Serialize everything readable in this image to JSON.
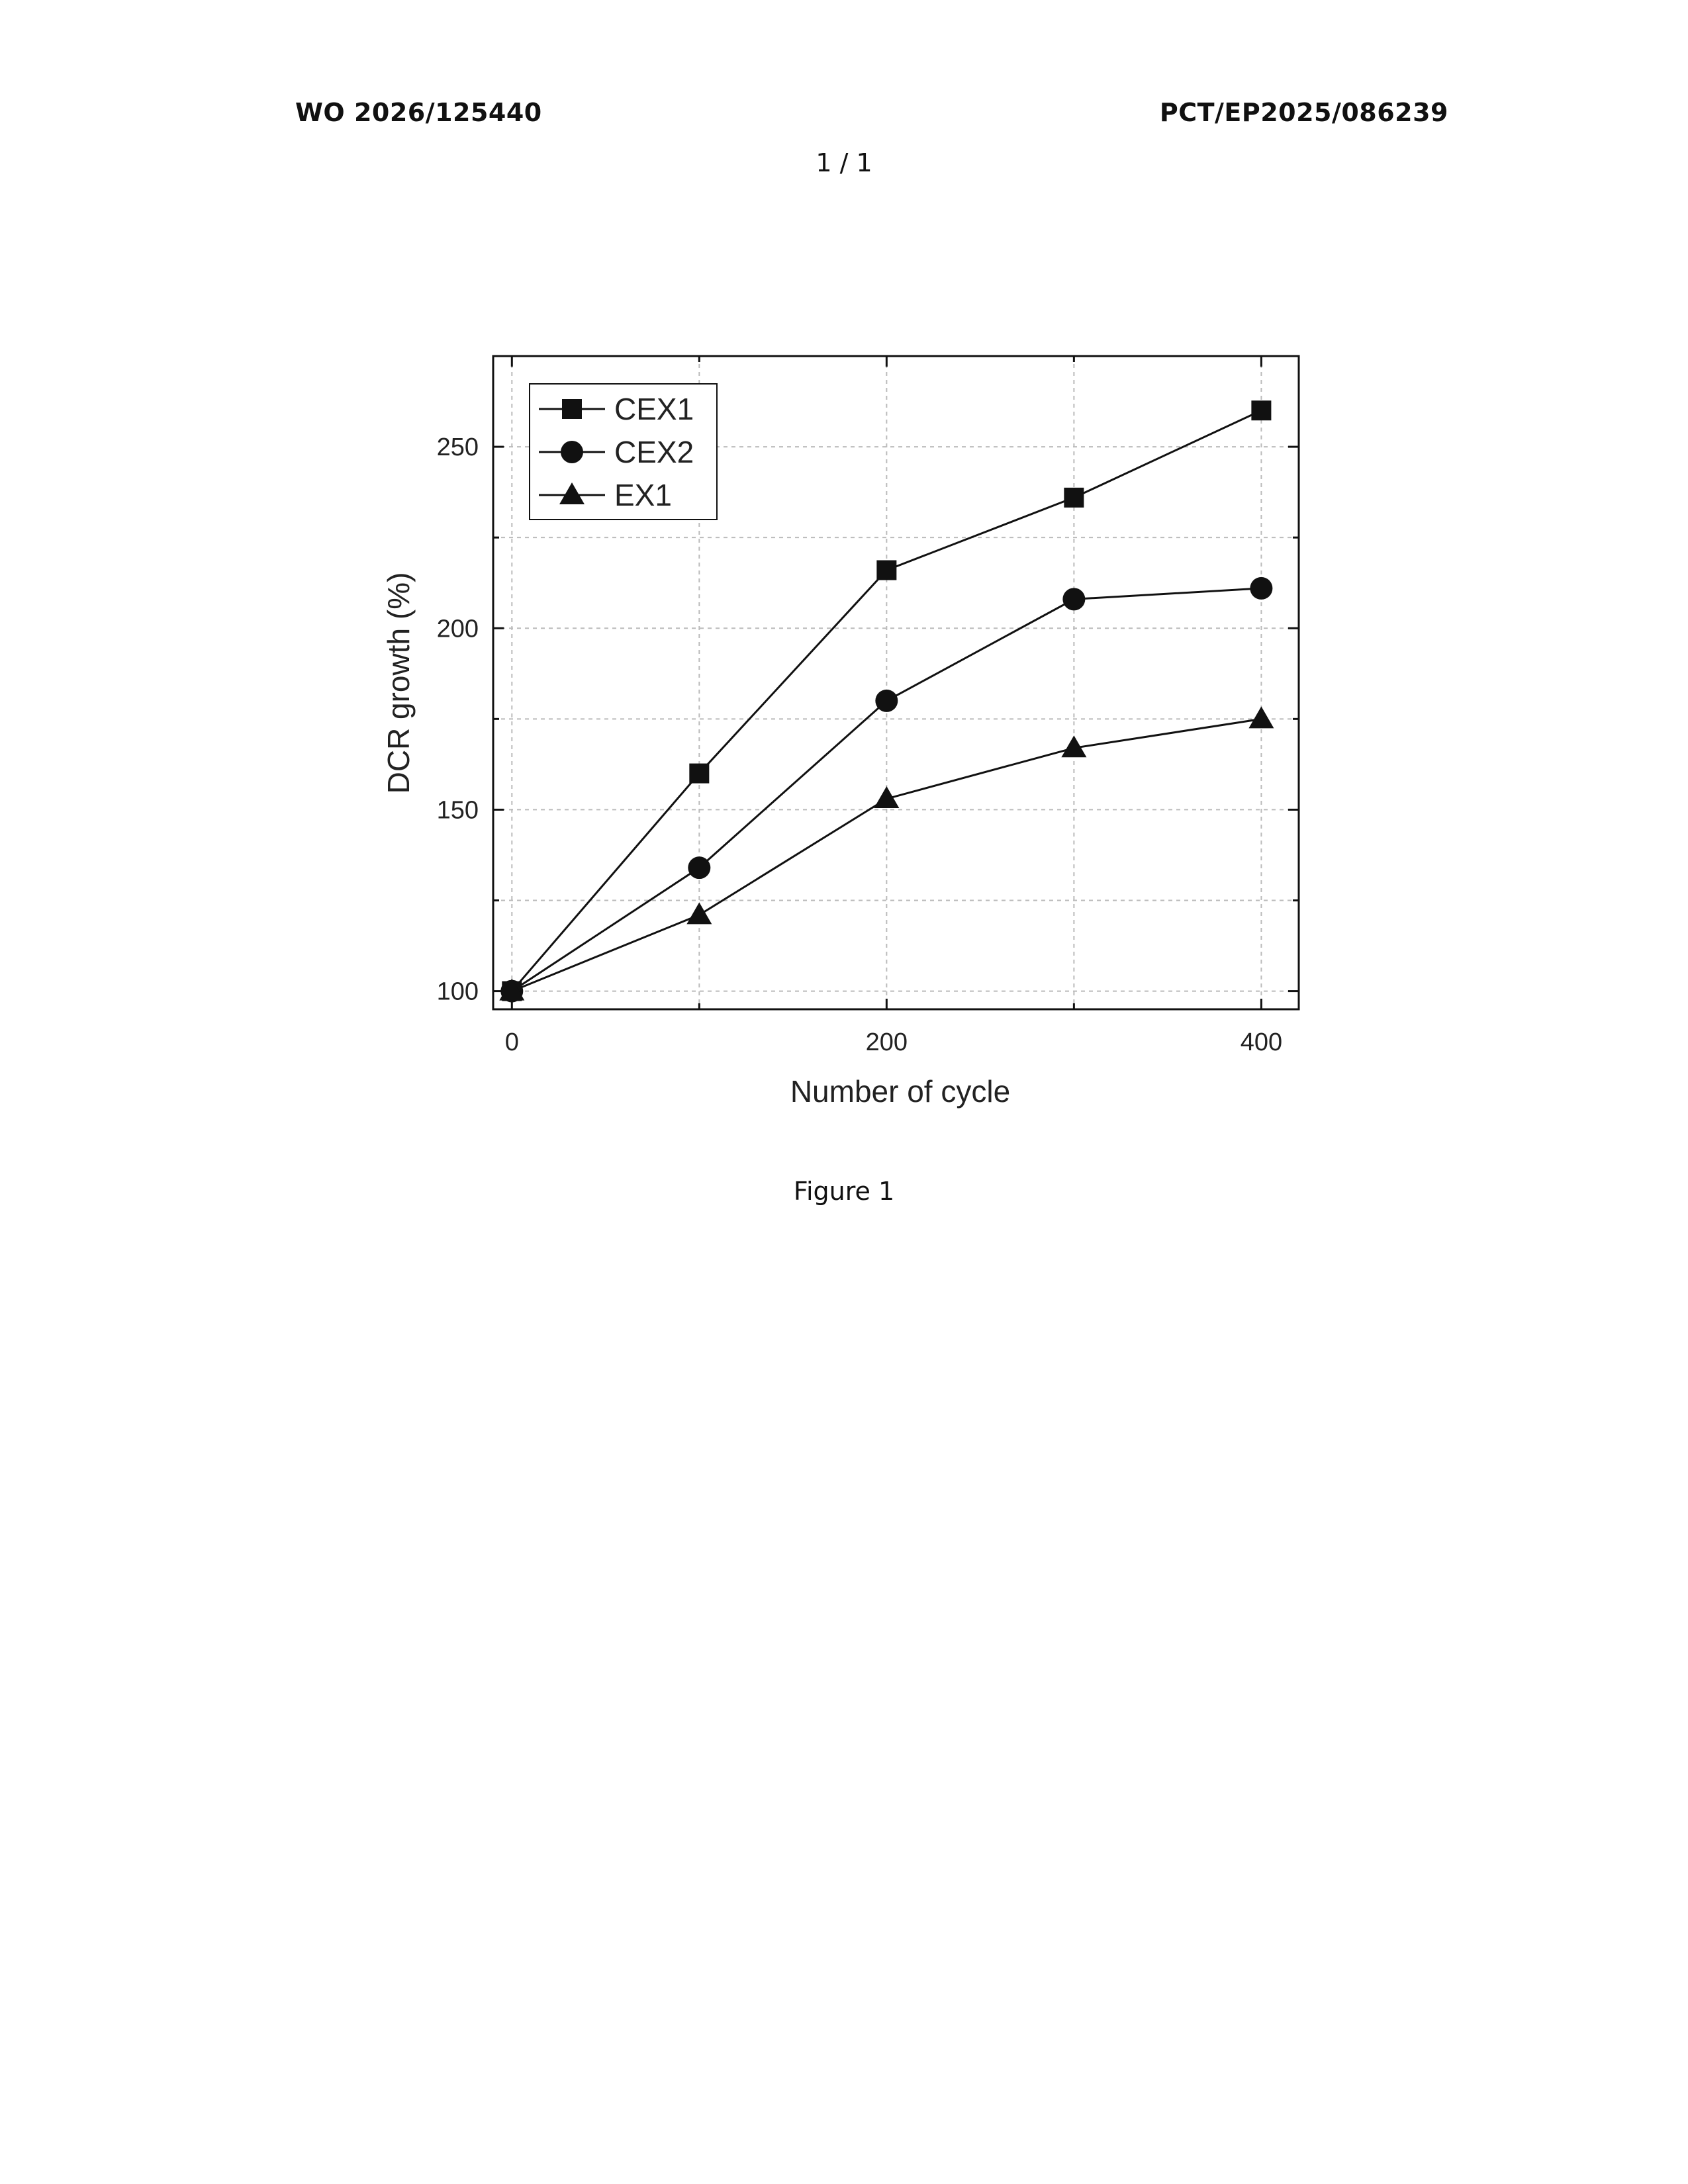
{
  "page": {
    "header_left": "WO 2026/125440",
    "header_right": "PCT/EP2025/086239",
    "page_number": "1 / 1",
    "caption": "Figure 1"
  },
  "chart_data": {
    "type": "line",
    "title": "",
    "xlabel": "Number of cycle",
    "ylabel": "DCR growth (%)",
    "xlim": [
      -10,
      420
    ],
    "ylim": [
      95,
      275
    ],
    "x_ticks": [
      0,
      200,
      400
    ],
    "y_ticks": [
      100,
      150,
      200,
      250
    ],
    "x_minor_grid": [
      100,
      300
    ],
    "y_minor_grid": [
      125,
      175,
      225
    ],
    "grid": true,
    "legend_position": "top-left",
    "x": [
      0,
      100,
      200,
      300,
      400
    ],
    "series": [
      {
        "name": "CEX1",
        "marker": "square",
        "values": [
          100,
          160,
          216,
          236,
          260
        ]
      },
      {
        "name": "CEX2",
        "marker": "circle",
        "values": [
          100,
          134,
          180,
          208,
          211
        ]
      },
      {
        "name": "EX1",
        "marker": "triangle",
        "values": [
          100,
          121,
          153,
          167,
          175
        ]
      }
    ],
    "colors": {
      "line": "#111111",
      "marker": "#111111",
      "grid": "#bbbbbb"
    }
  }
}
